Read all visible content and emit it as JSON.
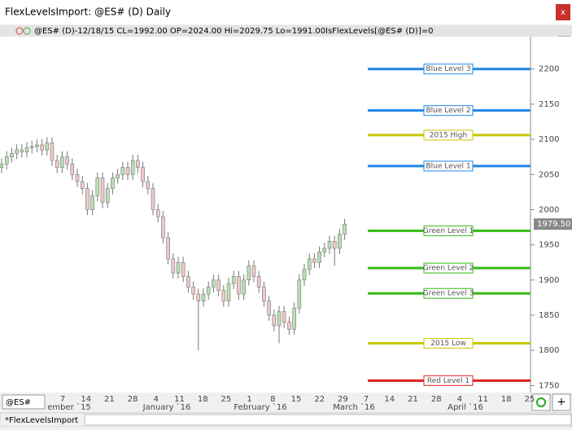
{
  "window": {
    "title": "FlexLevelsImport: @ES# (D) Daily",
    "close_button": "x",
    "menu_button": "M",
    "symbol_box": "@ES#",
    "add_button": "+",
    "tab": "*FlexLevelsImport"
  },
  "status": {
    "bar_info": "@ES# (D)-12/18/15 CL=1992.00 OP=2024.00 Hi=2029.75 Lo=1991.00",
    "indicator": "IsFlexLevels[@ES# (D)]=0"
  },
  "chart_data": {
    "type": "candlestick",
    "series": {
      "open": [
        2060,
        2065,
        2075,
        2080,
        2085,
        2082,
        2088,
        2090,
        2092,
        2085,
        2095,
        2070,
        2060,
        2075,
        2065,
        2050,
        2040,
        2030,
        2000,
        2020,
        2045,
        2010,
        2030,
        2045,
        2050,
        2060,
        2050,
        2070,
        2060,
        2040,
        2030,
        2000,
        1990,
        1960,
        1930,
        1910,
        1925,
        1905,
        1890,
        1880,
        1870,
        1880,
        1890,
        1900,
        1885,
        1870,
        1895,
        1905,
        1880,
        1900,
        1920,
        1905,
        1890,
        1870,
        1850,
        1835,
        1855,
        1840,
        1830,
        1860,
        1900,
        1915,
        1930,
        1925,
        1940,
        1945,
        1955,
        1945,
        1965
      ],
      "high": [
        2073,
        2083,
        2088,
        2093,
        2093,
        2096,
        2098,
        2100,
        2100,
        2103,
        2103,
        2078,
        2083,
        2083,
        2073,
        2058,
        2048,
        2038,
        2028,
        2053,
        2053,
        2038,
        2053,
        2058,
        2068,
        2068,
        2078,
        2078,
        2068,
        2048,
        2038,
        2008,
        1998,
        1968,
        1938,
        1933,
        1933,
        1913,
        1898,
        1888,
        1888,
        1898,
        1908,
        1908,
        1893,
        1903,
        1913,
        1913,
        1908,
        1928,
        1928,
        1913,
        1898,
        1878,
        1858,
        1863,
        1863,
        1848,
        1868,
        1908,
        1923,
        1938,
        1938,
        1948,
        1953,
        1963,
        1963,
        1973,
        1987
      ],
      "low": [
        2052,
        2057,
        2067,
        2072,
        2074,
        2074,
        2080,
        2082,
        2077,
        2077,
        2062,
        2052,
        2052,
        2057,
        2042,
        2032,
        2022,
        1992,
        1992,
        2012,
        2002,
        2002,
        2022,
        2037,
        2042,
        2042,
        2042,
        2052,
        2032,
        2022,
        1992,
        1982,
        1952,
        1922,
        1902,
        1902,
        1897,
        1882,
        1872,
        1800,
        1862,
        1872,
        1882,
        1877,
        1862,
        1862,
        1887,
        1872,
        1872,
        1892,
        1897,
        1882,
        1862,
        1842,
        1827,
        1810,
        1832,
        1822,
        1822,
        1852,
        1892,
        1907,
        1917,
        1917,
        1932,
        1937,
        1920,
        1937,
        1957
      ],
      "close": [
        2065,
        2075,
        2080,
        2085,
        2082,
        2088,
        2090,
        2092,
        2085,
        2095,
        2070,
        2060,
        2075,
        2065,
        2050,
        2040,
        2030,
        2000,
        2020,
        2045,
        2010,
        2030,
        2045,
        2050,
        2060,
        2050,
        2070,
        2060,
        2040,
        2030,
        2000,
        1990,
        1960,
        1930,
        1910,
        1925,
        1905,
        1890,
        1880,
        1870,
        1880,
        1890,
        1900,
        1885,
        1870,
        1895,
        1905,
        1880,
        1900,
        1920,
        1905,
        1890,
        1870,
        1850,
        1835,
        1855,
        1840,
        1830,
        1860,
        1900,
        1915,
        1930,
        1925,
        1940,
        1945,
        1955,
        1945,
        1965,
        1979.5
      ]
    },
    "up_color": "#b8e0b0",
    "down_color": "#f0c8c8",
    "ylim": [
      1740,
      2246
    ],
    "yticks": [
      1750,
      1800,
      1850,
      1900,
      1950,
      2000,
      2050,
      2100,
      2150,
      2200
    ],
    "last_price": {
      "value": 1979.5,
      "label": "1979.50"
    },
    "levels": [
      {
        "name": "Blue Level 3",
        "value": 2200,
        "color": "#1e88e5"
      },
      {
        "name": "Blue Level 2",
        "value": 2141,
        "color": "#1e88e5"
      },
      {
        "name": "2015 High",
        "value": 2106,
        "color": "#c8c800"
      },
      {
        "name": "Blue Level 1",
        "value": 2062,
        "color": "#1e88e5"
      },
      {
        "name": "Green Level 1",
        "value": 1970,
        "color": "#33bb11"
      },
      {
        "name": "Green Level 2",
        "value": 1917,
        "color": "#33bb11"
      },
      {
        "name": "Green Level 3",
        "value": 1881,
        "color": "#33bb11"
      },
      {
        "name": "2015 Low",
        "value": 1810,
        "color": "#c8c800"
      },
      {
        "name": "Red Level 1",
        "value": 1757,
        "color": "#e02020"
      }
    ],
    "x_day_labels": [
      "7",
      "14",
      "21",
      "28",
      "4",
      "11",
      "18",
      "25",
      "1",
      "8",
      "15",
      "22",
      "29",
      "7",
      "14",
      "21",
      "28",
      "4",
      "11",
      "18",
      "25"
    ],
    "x_month_labels": [
      "ember `15",
      "January `16",
      "February `16",
      "March `16",
      "April `16"
    ]
  }
}
